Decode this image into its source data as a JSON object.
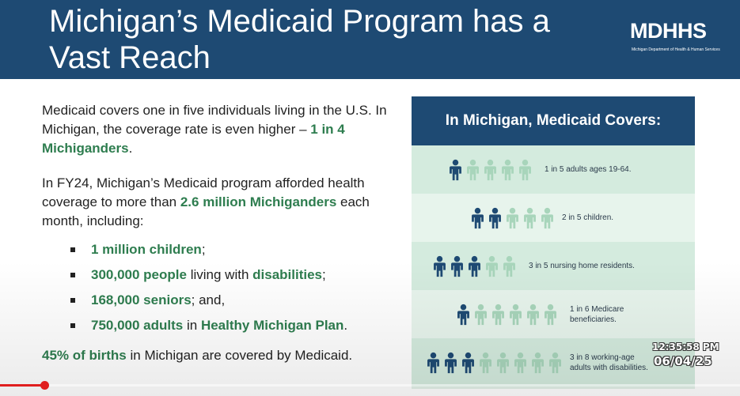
{
  "title": "Michigan’s Medicaid Program has a Vast Reach",
  "logo": {
    "text": "MDHHS",
    "subtitle": "Michigan Department of Health & Human Services"
  },
  "intro": {
    "p1_a": "Medicaid covers one in five individuals living in the U.S. In Michigan, the coverage rate is even higher –",
    "p1_b": "1 in 4 Michiganders",
    "p1_c": ".",
    "p2_a": "In FY24, Michigan’s Medicaid program afforded health coverage to more than",
    "p2_b": "2.6 million Michiganders",
    "p2_c": "each month, including:"
  },
  "bullets": [
    {
      "green": "1 million children",
      "rest": ";"
    },
    {
      "green": "300,000 people",
      "rest": "living with",
      "green2": "disabilities",
      "rest2": ";"
    },
    {
      "green": "168,000 seniors",
      "rest": "; and,"
    },
    {
      "green": "750,000 adults",
      "rest": "in",
      "green2": "Healthy Michigan Plan",
      "rest2": "."
    }
  ],
  "footer_para": {
    "green": "45% of births",
    "rest": "in Michigan are covered by Medicaid."
  },
  "panel": {
    "heading": "In Michigan, Medicaid Covers:",
    "rows": [
      {
        "text": "1 in 5 adults ages 19-64.",
        "dark": 1,
        "total": 5
      },
      {
        "text": "2 in 5 children.",
        "dark": 2,
        "total": 5
      },
      {
        "text": "3 in 5 nursing home residents.",
        "dark": 3,
        "total": 5
      },
      {
        "text": "1 in 6 Medicare beneficiaries.",
        "dark": 1,
        "total": 6
      },
      {
        "text": "3 in 8 working-age adults with disabilities.",
        "dark": 3,
        "total": 8
      }
    ]
  },
  "colors": {
    "header": "#1e4a73",
    "accent_green": "#2e7d4f",
    "person_dark": "#1e4a73",
    "person_light": "#a8d5bb"
  },
  "overlay": {
    "time": "12:35:58 PM",
    "date": "06/04/25"
  }
}
